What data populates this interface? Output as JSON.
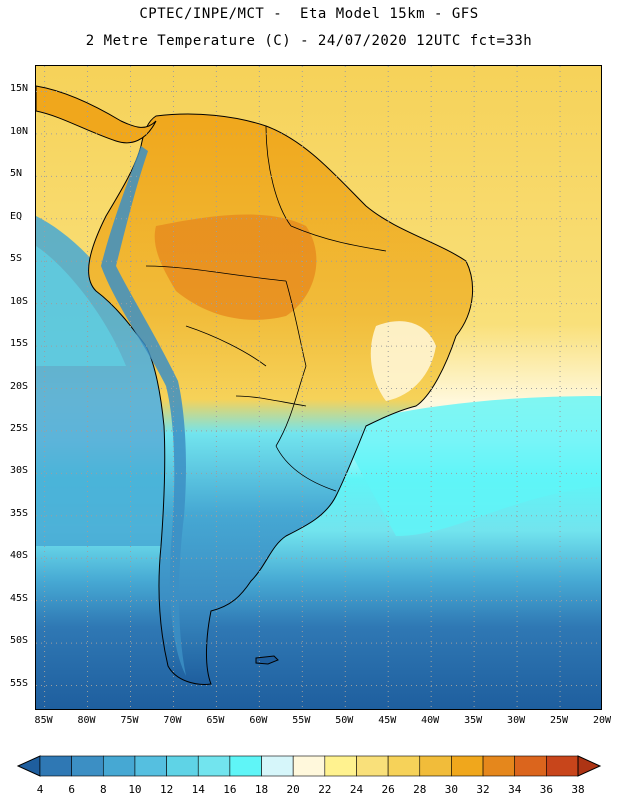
{
  "header": {
    "line1": "CPTEC/INPE/MCT -  Eta Model 15km - GFS",
    "line2": "2 Metre Temperature (C) - 24/07/2020 12UTC fct=33h"
  },
  "map": {
    "variable": "2 Metre Temperature",
    "units": "C",
    "lat_range": [
      -58,
      18
    ],
    "lon_range": [
      -86,
      -20
    ],
    "lat_labels": [
      "15N",
      "10N",
      "5N",
      "EQ",
      "5S",
      "10S",
      "15S",
      "20S",
      "25S",
      "30S",
      "35S",
      "40S",
      "45S",
      "50S",
      "55S"
    ],
    "lat_values": [
      15,
      10,
      5,
      0,
      -5,
      -10,
      -15,
      -20,
      -25,
      -30,
      -35,
      -40,
      -45,
      -50,
      -55
    ],
    "lon_labels": [
      "85W",
      "80W",
      "75W",
      "70W",
      "65W",
      "60W",
      "55W",
      "50W",
      "45W",
      "40W",
      "35W",
      "30W",
      "25W",
      "20W"
    ],
    "lon_values": [
      -85,
      -80,
      -75,
      -70,
      -65,
      -60,
      -55,
      -50,
      -45,
      -40,
      -35,
      -30,
      -25,
      -20
    ]
  },
  "colorbar": {
    "labels": [
      "4",
      "6",
      "8",
      "10",
      "12",
      "14",
      "16",
      "18",
      "20",
      "22",
      "24",
      "26",
      "28",
      "30",
      "32",
      "34",
      "36",
      "38"
    ],
    "colors": [
      "#1e5e9e",
      "#2f78b4",
      "#3c8fc4",
      "#46a8d3",
      "#55bfe0",
      "#5fd3e6",
      "#72e4ee",
      "#5ff5f7",
      "#d6f6fa",
      "#fff8dc",
      "#fff28f",
      "#f9e07a",
      "#f6d259",
      "#f1bc3a",
      "#f0a71c",
      "#e5871c",
      "#db651d",
      "#c8451b",
      "#ad3414"
    ]
  },
  "colors": {
    "ocean_warm": "#f6d259",
    "ocean_cold": "#1e5e9e",
    "coast": "#000000",
    "grid": "#9e9e9e"
  }
}
